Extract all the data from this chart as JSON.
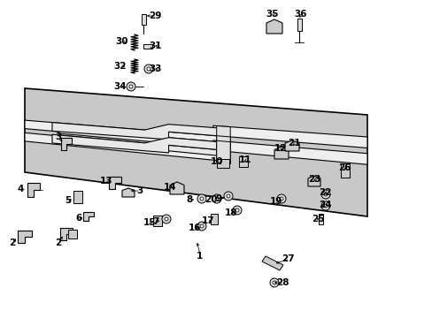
{
  "bg_color": "#ffffff",
  "figsize": [
    4.89,
    3.6
  ],
  "dpi": 100,
  "lc": "#000000",
  "frame_bg": "#cccccc",
  "frame_border": "#000000",
  "label_fs": 6.5,
  "bold_fs": 7.5
}
